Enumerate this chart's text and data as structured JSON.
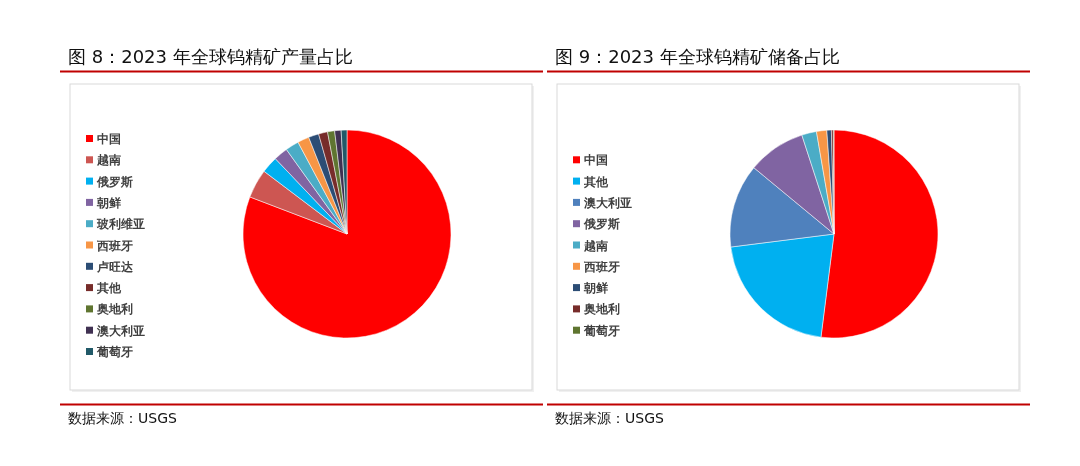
{
  "chart_data": [
    {
      "type": "pie",
      "title": "图 8：2023 年全球钨精矿产量占比",
      "categories": [
        "中国",
        "越南",
        "俄罗斯",
        "朝鲜",
        "玻利维亚",
        "西班牙",
        "卢旺达",
        "其他",
        "奥地利",
        "澳大利亚",
        "葡萄牙"
      ],
      "values": [
        80.8,
        4.5,
        2.6,
        2.2,
        2.1,
        1.8,
        1.6,
        1.4,
        1.1,
        1.0,
        0.9
      ],
      "colors": [
        "#ff0000",
        "#cd5652",
        "#00b0f0",
        "#8064a2",
        "#4bacc6",
        "#f79646",
        "#2c4d75",
        "#772c2a",
        "#5f7530",
        "#403152",
        "#215968"
      ],
      "legend": "left",
      "annotations": [
        "数据来源：USGS"
      ]
    },
    {
      "type": "pie",
      "title": "图 9：2023 年全球钨精矿储备占比",
      "categories": [
        "中国",
        "其他",
        "澳大利亚",
        "俄罗斯",
        "越南",
        "西班牙",
        "朝鲜",
        "奥地利",
        "葡萄牙"
      ],
      "values": [
        52,
        21,
        13,
        9,
        2.3,
        1.6,
        0.7,
        0.3,
        0.1
      ],
      "colors": [
        "#ff0000",
        "#00b0f0",
        "#4f81bd",
        "#8064a2",
        "#4bacc6",
        "#f79646",
        "#2c4d75",
        "#772c2a",
        "#5f7530"
      ],
      "legend": "left",
      "annotations": [
        "数据来源：USGS"
      ]
    }
  ]
}
